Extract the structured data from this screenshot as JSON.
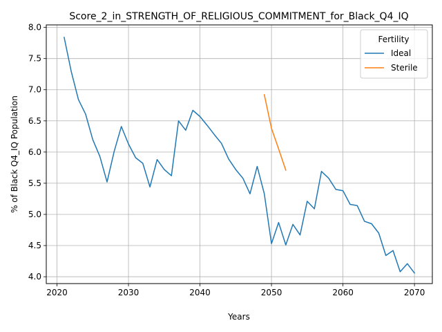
{
  "chart_data": {
    "type": "line",
    "title": "Score_2_in_STRENGTH_OF_RELIGIOUS_COMMITMENT_for_Black_Q4_IQ",
    "xlabel": "Years",
    "ylabel": "% of Black Q4_IQ Population",
    "xlim": [
      2018.5,
      2072.5
    ],
    "ylim": [
      3.89,
      8.04
    ],
    "xticks": [
      2020,
      2030,
      2040,
      2050,
      2060,
      2070
    ],
    "yticks": [
      4.0,
      4.5,
      5.0,
      5.5,
      6.0,
      6.5,
      7.0,
      7.5,
      8.0
    ],
    "xtick_labels": [
      "2020",
      "2030",
      "2040",
      "2050",
      "2060",
      "2070"
    ],
    "ytick_labels": [
      "4.0",
      "4.5",
      "5.0",
      "5.5",
      "6.0",
      "6.5",
      "7.0",
      "7.5",
      "8.0"
    ],
    "grid": true,
    "legend": {
      "title": "Fertility",
      "placement": "top-right"
    },
    "series": [
      {
        "name": "Ideal",
        "color": "#1f77b4",
        "x": [
          2021,
          2022,
          2023,
          2024,
          2025,
          2026,
          2027,
          2028,
          2029,
          2030,
          2031,
          2032,
          2033,
          2034,
          2035,
          2036,
          2037,
          2038,
          2039,
          2040,
          2041,
          2042,
          2043,
          2044,
          2045,
          2046,
          2047,
          2048,
          2049,
          2050,
          2051,
          2052,
          2053,
          2054,
          2055,
          2056,
          2057,
          2058,
          2059,
          2060,
          2061,
          2062,
          2063,
          2064,
          2065,
          2066,
          2067,
          2068,
          2069,
          2070
        ],
        "values": [
          7.84,
          7.29,
          6.84,
          6.61,
          6.2,
          5.93,
          5.52,
          6.01,
          6.41,
          6.13,
          5.91,
          5.82,
          5.44,
          5.88,
          5.72,
          5.62,
          6.5,
          6.35,
          6.67,
          6.57,
          6.43,
          6.28,
          6.14,
          5.89,
          5.72,
          5.58,
          5.33,
          5.77,
          5.33,
          4.53,
          4.87,
          4.51,
          4.84,
          4.67,
          5.21,
          5.09,
          5.69,
          5.58,
          5.4,
          5.38,
          5.16,
          5.14,
          4.89,
          4.85,
          4.7,
          4.34,
          4.42,
          4.08,
          4.21,
          4.06
        ]
      },
      {
        "name": "Sterile",
        "color": "#ff7f0e",
        "x": [
          2049,
          2050,
          2051,
          2052
        ],
        "values": [
          6.92,
          6.38,
          6.05,
          5.71
        ]
      }
    ]
  }
}
